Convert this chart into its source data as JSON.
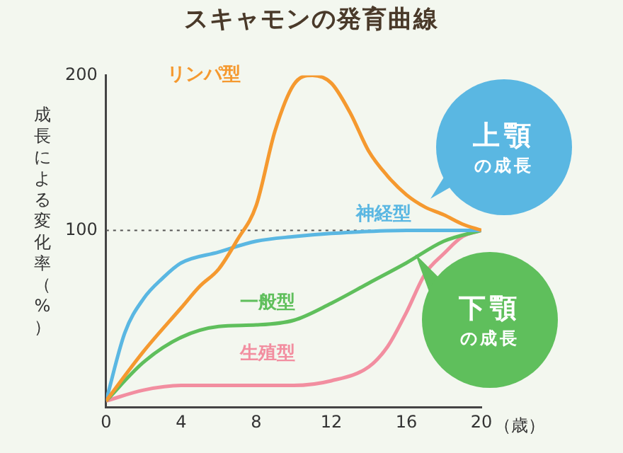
{
  "chart_data": {
    "type": "line",
    "title": "スキャモンの発育曲線",
    "ylabel": "成長による変化率（%）",
    "xlabel": "（歳）",
    "xlim": [
      0,
      20
    ],
    "xticks": [
      0,
      4,
      8,
      12,
      16,
      20
    ],
    "ylim": [
      -14,
      200
    ],
    "yticks": [
      100,
      200
    ],
    "grid": false,
    "legend": false,
    "marker": "none",
    "line_style": "solid",
    "ref_lines": [
      {
        "axis": "y",
        "value": 100,
        "color": "#555555",
        "line_style": "dotted"
      }
    ],
    "annotations": [
      "上顎の成長",
      "下顎の成長"
    ],
    "series": [
      {
        "name": "リンパ型",
        "color": "#f5992f",
        "x": [
          0,
          2,
          4,
          5,
          6,
          7,
          8,
          9,
          10,
          11,
          12,
          13,
          14,
          15,
          16,
          17,
          18,
          19,
          20
        ],
        "values": [
          -10,
          22,
          50,
          64,
          75,
          94,
          116,
          164,
          194,
          200,
          195,
          176,
          151,
          135,
          123,
          115,
          110,
          104,
          100
        ]
      },
      {
        "name": "神経型",
        "color": "#5ab7e2",
        "x": [
          0,
          1,
          2,
          3,
          4,
          6,
          8,
          10,
          12,
          16,
          20
        ],
        "values": [
          -10,
          34,
          56,
          69,
          79,
          86,
          93,
          96,
          98,
          100,
          100
        ]
      },
      {
        "name": "一般型",
        "color": "#5fbf5c",
        "x": [
          0,
          2,
          4,
          6,
          8,
          10,
          12,
          14,
          16,
          18,
          20
        ],
        "values": [
          -10,
          15,
          31,
          38,
          39,
          42,
          53,
          66,
          79,
          93,
          100
        ]
      },
      {
        "name": "生殖型",
        "color": "#f28ea0",
        "x": [
          0,
          2,
          4,
          6,
          8,
          10,
          12,
          14,
          15,
          16,
          17,
          18,
          19,
          20
        ],
        "values": [
          -10,
          -3,
          0,
          0,
          0,
          0,
          3,
          12,
          25,
          47,
          72,
          85,
          96,
          100
        ]
      }
    ]
  }
}
